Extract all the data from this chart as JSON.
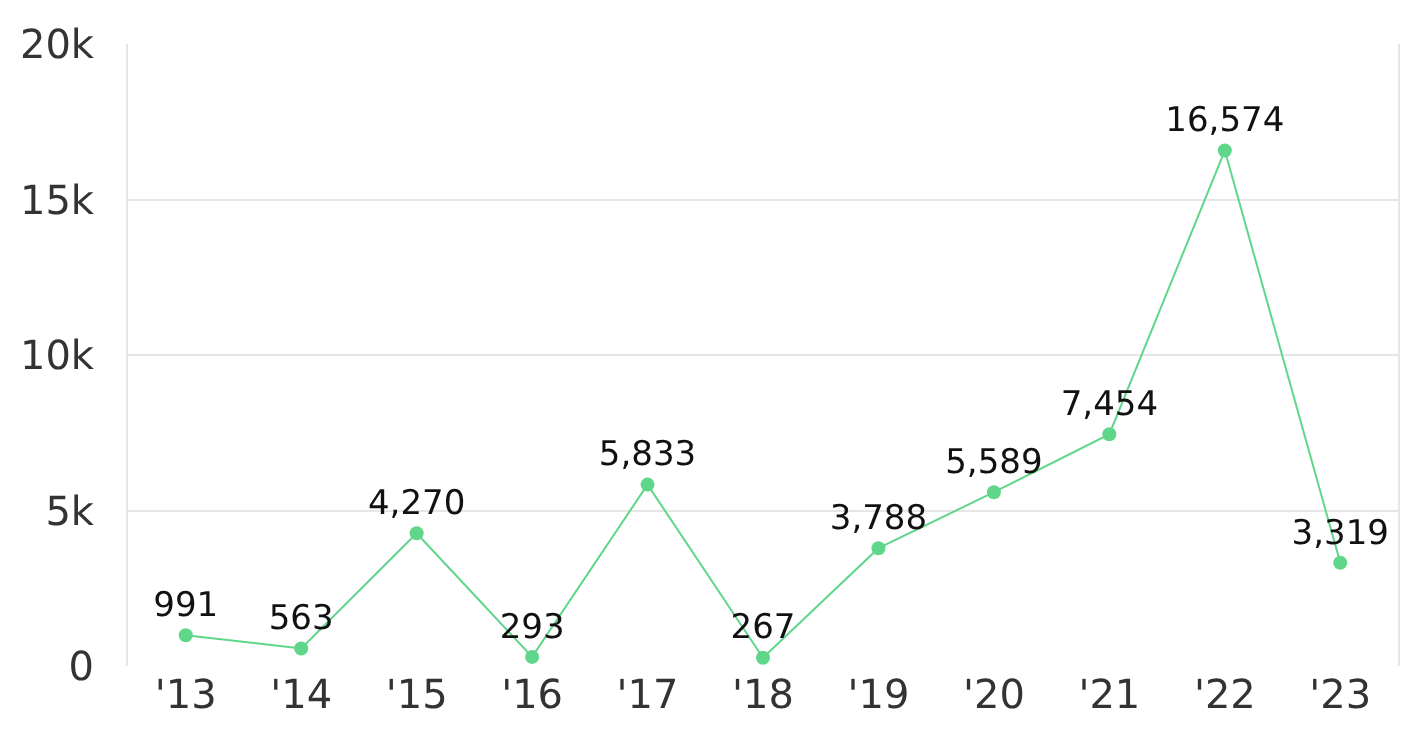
{
  "chart_data": {
    "type": "line",
    "categories": [
      "'13",
      "'14",
      "'15",
      "'16",
      "'17",
      "'18",
      "'19",
      "'20",
      "'21",
      "'22",
      "'23"
    ],
    "series": [
      {
        "color": "#5fd68a",
        "values": [
          991,
          563,
          4270,
          293,
          5833,
          267,
          3788,
          5589,
          7454,
          16574,
          3319
        ],
        "value_labels": [
          "991",
          "563",
          "4,270",
          "293",
          "5,833",
          "267",
          "3,788",
          "5,589",
          "7,454",
          "16,574",
          "3,319"
        ]
      }
    ],
    "ylim": [
      0,
      20000
    ],
    "yticks": [
      0,
      {
        "value": 5000,
        "label": "5k"
      },
      {
        "value": 10000,
        "label": "10k"
      },
      {
        "value": 15000,
        "label": "15k"
      },
      {
        "value": 20000,
        "label": "20k"
      }
    ],
    "grid": "y",
    "marker": "circle",
    "line_style": "solid",
    "legend": false
  }
}
